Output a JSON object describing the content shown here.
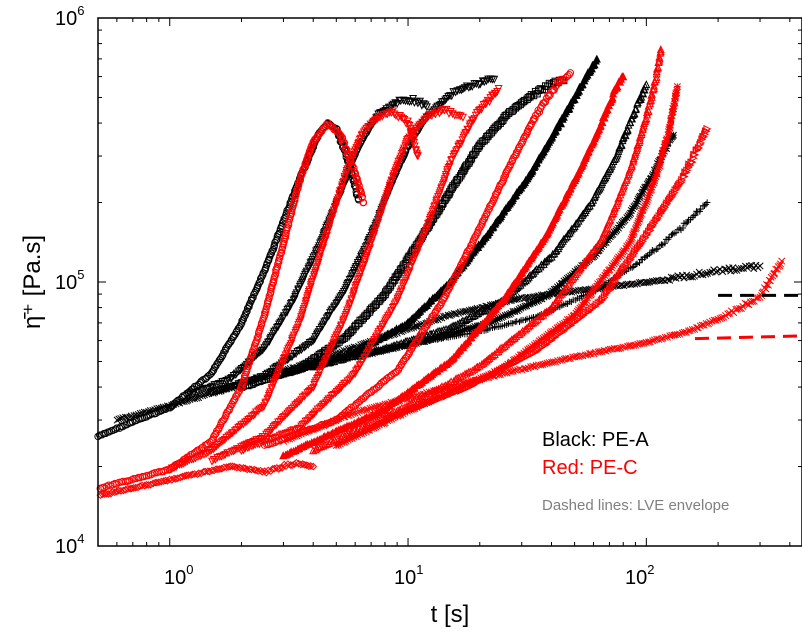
{
  "chart_data": {
    "type": "scatter",
    "title": "",
    "xlabel": "t [s]",
    "ylabel": "η̄⁺ [Pa.s]",
    "xscale": "log",
    "yscale": "log",
    "xlim": [
      0.5,
      450
    ],
    "ylim": [
      10000,
      1000000
    ],
    "grid": false,
    "x_ticks": [
      {
        "base": "10",
        "exp": "0",
        "value": 1
      },
      {
        "base": "10",
        "exp": "1",
        "value": 10
      },
      {
        "base": "10",
        "exp": "2",
        "value": 100
      }
    ],
    "y_ticks": [
      {
        "base": "10",
        "exp": "4",
        "value": 10000
      },
      {
        "base": "10",
        "exp": "5",
        "value": 100000
      },
      {
        "base": "10",
        "exp": "6",
        "value": 1000000
      }
    ],
    "legend": {
      "placement": "lower-right",
      "entries": [
        {
          "text": "Black: PE-A",
          "color": "#000000"
        },
        {
          "text": "Red: PE-C",
          "color": "#ff0000"
        },
        {
          "text": "Dashed lines: LVE envelope",
          "color": "#808080"
        }
      ]
    },
    "series": [
      {
        "group": "PE-A",
        "color": "#000000",
        "marker": "circle",
        "points": [
          [
            0.5,
            26000
          ],
          [
            0.7,
            29500
          ],
          [
            1.0,
            33500
          ],
          [
            1.5,
            45000
          ],
          [
            2.0,
            70000
          ],
          [
            2.5,
            110000
          ],
          [
            3.0,
            170000
          ],
          [
            3.6,
            260000
          ],
          [
            4.2,
            360000
          ],
          [
            4.6,
            400000
          ],
          [
            5.0,
            380000
          ],
          [
            5.6,
            290000
          ],
          [
            6.2,
            205000
          ]
        ]
      },
      {
        "group": "PE-A",
        "color": "#000000",
        "marker": "triangle-down",
        "points": [
          [
            1.2,
            37000
          ],
          [
            1.8,
            43000
          ],
          [
            2.5,
            56000
          ],
          [
            3.3,
            85000
          ],
          [
            4.2,
            135000
          ],
          [
            5.2,
            215000
          ],
          [
            6.2,
            320000
          ],
          [
            7.5,
            430000
          ],
          [
            9.0,
            480000
          ],
          [
            10.5,
            490000
          ],
          [
            12.0,
            460000
          ]
        ]
      },
      {
        "group": "PE-A",
        "color": "#000000",
        "marker": "triangle-down",
        "points": [
          [
            1.5,
            38000
          ],
          [
            2.5,
            44000
          ],
          [
            4.0,
            60000
          ],
          [
            5.5,
            95000
          ],
          [
            7.0,
            150000
          ],
          [
            8.5,
            230000
          ],
          [
            10.0,
            320000
          ],
          [
            12.0,
            420000
          ],
          [
            15.0,
            510000
          ],
          [
            19.0,
            560000
          ],
          [
            23.0,
            585000
          ]
        ]
      },
      {
        "group": "PE-A",
        "color": "#000000",
        "marker": "square",
        "points": [
          [
            2.0,
            40000
          ],
          [
            3.5,
            47000
          ],
          [
            5.5,
            62000
          ],
          [
            8.0,
            90000
          ],
          [
            11.0,
            140000
          ],
          [
            15.0,
            220000
          ],
          [
            20.0,
            330000
          ],
          [
            26.0,
            430000
          ],
          [
            33.0,
            510000
          ],
          [
            40.0,
            560000
          ],
          [
            45.0,
            580000
          ]
        ]
      },
      {
        "group": "PE-A",
        "color": "#000000",
        "marker": "triangle-up-filled",
        "points": [
          [
            3.0,
            45000
          ],
          [
            6.0,
            54000
          ],
          [
            10.0,
            70000
          ],
          [
            15.0,
            100000
          ],
          [
            22.0,
            155000
          ],
          [
            32.0,
            250000
          ],
          [
            42.0,
            380000
          ],
          [
            52.0,
            530000
          ],
          [
            62.0,
            700000
          ]
        ]
      },
      {
        "group": "PE-A",
        "color": "#000000",
        "marker": "triangle-up",
        "points": [
          [
            4.0,
            48000
          ],
          [
            8.0,
            56000
          ],
          [
            15.0,
            67000
          ],
          [
            25.0,
            85000
          ],
          [
            40.0,
            125000
          ],
          [
            58.0,
            195000
          ],
          [
            75.0,
            300000
          ],
          [
            90.0,
            450000
          ],
          [
            100.0,
            560000
          ]
        ]
      },
      {
        "group": "PE-A",
        "color": "#000000",
        "marker": "star",
        "points": [
          [
            6.0,
            52000
          ],
          [
            12.0,
            60000
          ],
          [
            22.0,
            70000
          ],
          [
            38.0,
            88000
          ],
          [
            60.0,
            125000
          ],
          [
            85.0,
            180000
          ],
          [
            105.0,
            250000
          ],
          [
            120.0,
            320000
          ],
          [
            130.0,
            360000
          ]
        ]
      },
      {
        "group": "PE-A",
        "color": "#000000",
        "marker": "plus",
        "points": [
          [
            10.0,
            58000
          ],
          [
            20.0,
            65000
          ],
          [
            35.0,
            74000
          ],
          [
            60.0,
            92000
          ],
          [
            95.0,
            120000
          ],
          [
            140.0,
            160000
          ],
          [
            180.0,
            200000
          ]
        ]
      },
      {
        "group": "PE-A",
        "color": "#000000",
        "marker": "x",
        "points": [
          [
            0.6,
            30000
          ],
          [
            1.0,
            34000
          ],
          [
            2.0,
            41000
          ],
          [
            4.0,
            50000
          ],
          [
            8.0,
            62000
          ],
          [
            15.0,
            75000
          ],
          [
            30.0,
            87000
          ],
          [
            60.0,
            94000
          ],
          [
            120.0,
            102000
          ],
          [
            200.0,
            110000
          ],
          [
            300.0,
            115000
          ]
        ]
      },
      {
        "group": "PE-C",
        "color": "#ff0000",
        "marker": "circle",
        "points": [
          [
            0.5,
            16500
          ],
          [
            1.0,
            19500
          ],
          [
            1.5,
            25000
          ],
          [
            2.0,
            40000
          ],
          [
            2.5,
            75000
          ],
          [
            3.0,
            140000
          ],
          [
            3.5,
            240000
          ],
          [
            4.0,
            340000
          ],
          [
            4.6,
            400000
          ],
          [
            5.2,
            360000
          ],
          [
            6.0,
            260000
          ],
          [
            6.5,
            200000
          ]
        ]
      },
      {
        "group": "PE-C",
        "color": "#ff0000",
        "marker": "triangle-down",
        "points": [
          [
            1.0,
            19500
          ],
          [
            1.5,
            23000
          ],
          [
            2.5,
            34000
          ],
          [
            3.5,
            70000
          ],
          [
            4.5,
            145000
          ],
          [
            5.5,
            260000
          ],
          [
            6.5,
            370000
          ],
          [
            7.5,
            420000
          ],
          [
            8.5,
            440000
          ],
          [
            10.0,
            400000
          ],
          [
            11.0,
            300000
          ]
        ]
      },
      {
        "group": "PE-C",
        "color": "#ff0000",
        "marker": "triangle-down",
        "points": [
          [
            1.5,
            21000
          ],
          [
            2.5,
            26000
          ],
          [
            4.0,
            40000
          ],
          [
            5.5,
            75000
          ],
          [
            7.0,
            140000
          ],
          [
            8.5,
            240000
          ],
          [
            10.0,
            350000
          ],
          [
            12.0,
            420000
          ],
          [
            14.0,
            450000
          ],
          [
            17.0,
            420000
          ]
        ]
      },
      {
        "group": "PE-C",
        "color": "#ff0000",
        "marker": "triangle-down",
        "points": [
          [
            2.0,
            23000
          ],
          [
            3.5,
            28000
          ],
          [
            6.0,
            45000
          ],
          [
            9.0,
            85000
          ],
          [
            12.0,
            160000
          ],
          [
            15.0,
            280000
          ],
          [
            19.0,
            420000
          ],
          [
            24.0,
            540000
          ]
        ]
      },
      {
        "group": "PE-C",
        "color": "#ff0000",
        "marker": "circle",
        "points": [
          [
            2.5,
            24000
          ],
          [
            5.0,
            30000
          ],
          [
            9.0,
            46000
          ],
          [
            14.0,
            85000
          ],
          [
            20.0,
            160000
          ],
          [
            27.0,
            280000
          ],
          [
            34.0,
            420000
          ],
          [
            42.0,
            560000
          ],
          [
            48.0,
            620000
          ]
        ]
      },
      {
        "group": "PE-C",
        "color": "#ff0000",
        "marker": "triangle-up-filled",
        "points": [
          [
            3.0,
            22000
          ],
          [
            8.0,
            33000
          ],
          [
            15.0,
            50000
          ],
          [
            25.0,
            85000
          ],
          [
            38.0,
            150000
          ],
          [
            52.0,
            260000
          ],
          [
            65.0,
            400000
          ],
          [
            75.0,
            550000
          ],
          [
            80.0,
            600000
          ]
        ]
      },
      {
        "group": "PE-C",
        "color": "#ff0000",
        "marker": "triangle-up",
        "points": [
          [
            4.0,
            23000
          ],
          [
            10.0,
            34000
          ],
          [
            20.0,
            48000
          ],
          [
            40.0,
            80000
          ],
          [
            65.0,
            145000
          ],
          [
            85.0,
            260000
          ],
          [
            100.0,
            420000
          ],
          [
            110.0,
            600000
          ],
          [
            115.0,
            760000
          ]
        ]
      },
      {
        "group": "PE-C",
        "color": "#ff0000",
        "marker": "star",
        "points": [
          [
            5.0,
            24000
          ],
          [
            12.0,
            35000
          ],
          [
            25.0,
            47000
          ],
          [
            50.0,
            75000
          ],
          [
            85.0,
            140000
          ],
          [
            110.0,
            250000
          ],
          [
            125.0,
            380000
          ],
          [
            135.0,
            550000
          ]
        ]
      },
      {
        "group": "PE-C",
        "color": "#ff0000",
        "marker": "triangle-right",
        "points": [
          [
            8.0,
            30000
          ],
          [
            18.0,
            40000
          ],
          [
            35.0,
            55000
          ],
          [
            65.0,
            85000
          ],
          [
            100.0,
            150000
          ],
          [
            140.0,
            240000
          ],
          [
            165.0,
            320000
          ],
          [
            180.0,
            380000
          ]
        ]
      },
      {
        "group": "PE-C",
        "color": "#ff0000",
        "marker": "x",
        "points": [
          [
            3.0,
            25000
          ],
          [
            6.0,
            32000
          ],
          [
            12.0,
            38000
          ],
          [
            25.0,
            45000
          ],
          [
            50.0,
            52000
          ],
          [
            100.0,
            59000
          ],
          [
            150.0,
            65000
          ],
          [
            220.0,
            75000
          ],
          [
            300.0,
            88000
          ],
          [
            370.0,
            120000
          ]
        ]
      },
      {
        "group": "PE-C",
        "color": "#ff0000",
        "marker": "diamond",
        "points": [
          [
            0.5,
            15500
          ],
          [
            0.8,
            17000
          ],
          [
            1.2,
            18500
          ],
          [
            1.8,
            20000
          ],
          [
            2.6,
            19000
          ],
          [
            3.2,
            20500
          ],
          [
            4.0,
            20000
          ]
        ]
      }
    ],
    "lve_lines": [
      {
        "group": "PE-A",
        "color": "#000000",
        "dash": true,
        "x": [
          200,
          450
        ],
        "y": [
          89000,
          89000
        ]
      },
      {
        "group": "PE-C",
        "color": "#ff0000",
        "dash": true,
        "x": [
          160,
          450
        ],
        "y": [
          61000,
          62500
        ]
      }
    ]
  }
}
